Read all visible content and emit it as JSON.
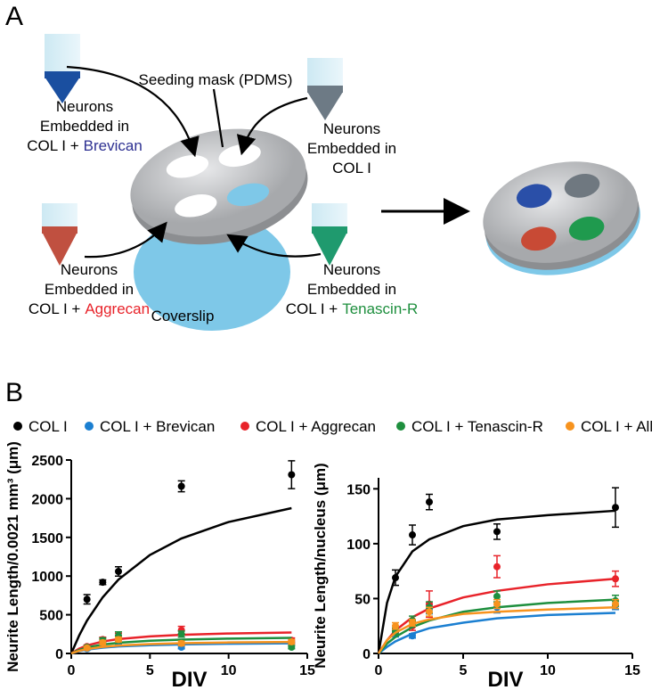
{
  "diagram": {
    "panel_label": "A",
    "mask_label": "Seeding mask (PDMS)",
    "coverslip_label": "Coverslip",
    "tubes": [
      {
        "lines": [
          "Neurons",
          "Embedded in",
          "COL I +"
        ],
        "highlight": "Brevican"
      },
      {
        "lines": [
          "Neurons",
          "Embedded in",
          "COL I"
        ]
      },
      {
        "lines": [
          "Neurons",
          "Embedded in",
          "COL I +"
        ],
        "highlight": "Aggrecan"
      },
      {
        "lines": [
          "Neurons",
          "Embedded in",
          "COL I +"
        ],
        "highlight": "Tenascin-R"
      }
    ]
  },
  "panel_b_label": "B",
  "legend": [
    {
      "name": "COL I",
      "color": "#000000"
    },
    {
      "name": "COL I + Brevican",
      "color": "#1b7fd1"
    },
    {
      "name": "COL I + Aggrecan",
      "color": "#e8232a"
    },
    {
      "name": "COL I + Tenascin-R",
      "color": "#1e8f3e"
    },
    {
      "name": "COL I + All",
      "color": "#f7931e"
    }
  ],
  "chart_data": [
    {
      "type": "scatter",
      "x_label": "DIV",
      "y_label": "Neurite Length/0.0021 mm³ (μm)",
      "xlim": [
        0,
        15
      ],
      "xticks": [
        0,
        5,
        10,
        15
      ],
      "ylim": [
        0,
        2500
      ],
      "yticks": [
        0,
        500,
        1000,
        1500,
        2000,
        2500
      ],
      "x": [
        1,
        2,
        3,
        7,
        14
      ],
      "fit_x": [
        0,
        0.5,
        1,
        2,
        3,
        5,
        7,
        10,
        14
      ],
      "series": [
        {
          "color": "#000000",
          "values": [
            700,
            920,
            1060,
            2160,
            2310
          ],
          "errors": [
            60,
            30,
            60,
            70,
            180
          ],
          "fit": [
            0,
            231,
            424,
            726,
            954,
            1273,
            1486,
            1699,
            1878
          ]
        },
        {
          "color": "#1b7fd1",
          "values": [
            60,
            120,
            150,
            80,
            130
          ],
          "errors": [
            20,
            20,
            30,
            20,
            20
          ],
          "fit": [
            0,
            30,
            50,
            75,
            90,
            107,
            117,
            125,
            131
          ]
        },
        {
          "color": "#e8232a",
          "values": [
            90,
            180,
            220,
            300,
            170
          ],
          "errors": [
            20,
            30,
            40,
            50,
            30
          ],
          "fit": [
            0,
            62,
            103,
            155,
            186,
            221,
            241,
            258,
            271
          ]
        },
        {
          "color": "#1e8f3e",
          "values": [
            80,
            170,
            230,
            250,
            80
          ],
          "errors": [
            20,
            30,
            50,
            40,
            20
          ],
          "fit": [
            0,
            46,
            77,
            115,
            138,
            164,
            179,
            192,
            201
          ]
        },
        {
          "color": "#f7931e",
          "values": [
            70,
            140,
            180,
            130,
            150
          ],
          "errors": [
            20,
            30,
            30,
            30,
            30
          ],
          "fit": [
            0,
            34,
            57,
            85,
            102,
            121,
            132,
            142,
            149
          ]
        }
      ]
    },
    {
      "type": "scatter",
      "x_label": "DIV",
      "y_label": "Neurite Length/nucleus (μm)",
      "xlim": [
        0,
        15
      ],
      "xticks": [
        0,
        5,
        10,
        15
      ],
      "ylim": [
        0,
        160
      ],
      "yticks": [
        0,
        50,
        100,
        150
      ],
      "x": [
        1,
        2,
        3,
        7,
        14
      ],
      "fit_x": [
        0,
        0.5,
        1,
        2,
        3,
        5,
        7,
        10,
        14
      ],
      "series": [
        {
          "color": "#000000",
          "values": [
            69,
            108,
            138,
            111,
            133
          ],
          "errors": [
            7,
            9,
            7,
            7,
            18
          ],
          "fit": [
            0,
            46,
            70,
            93,
            104,
            116,
            122,
            126,
            130
          ]
        },
        {
          "color": "#1b7fd1",
          "values": [
            18,
            16,
            40,
            42,
            44
          ],
          "errors": [
            3,
            2,
            4,
            5,
            4
          ],
          "fit": [
            0,
            6,
            11,
            18,
            23,
            28,
            32,
            35,
            37
          ]
        },
        {
          "color": "#e8232a",
          "values": [
            22,
            25,
            45,
            79,
            68
          ],
          "errors": [
            3,
            4,
            12,
            10,
            7
          ],
          "fit": [
            0,
            12,
            21,
            33,
            41,
            51,
            57,
            63,
            68
          ]
        },
        {
          "color": "#1e8f3e",
          "values": [
            20,
            30,
            42,
            52,
            48
          ],
          "errors": [
            3,
            4,
            5,
            5,
            5
          ],
          "fit": [
            0,
            9,
            15,
            24,
            30,
            38,
            42,
            46,
            49
          ]
        },
        {
          "color": "#f7931e",
          "values": [
            25,
            28,
            38,
            45,
            45
          ],
          "errors": [
            3,
            3,
            4,
            4,
            4
          ],
          "fit": [
            0,
            12,
            19,
            27,
            31,
            36,
            38,
            40,
            42
          ]
        }
      ]
    }
  ]
}
